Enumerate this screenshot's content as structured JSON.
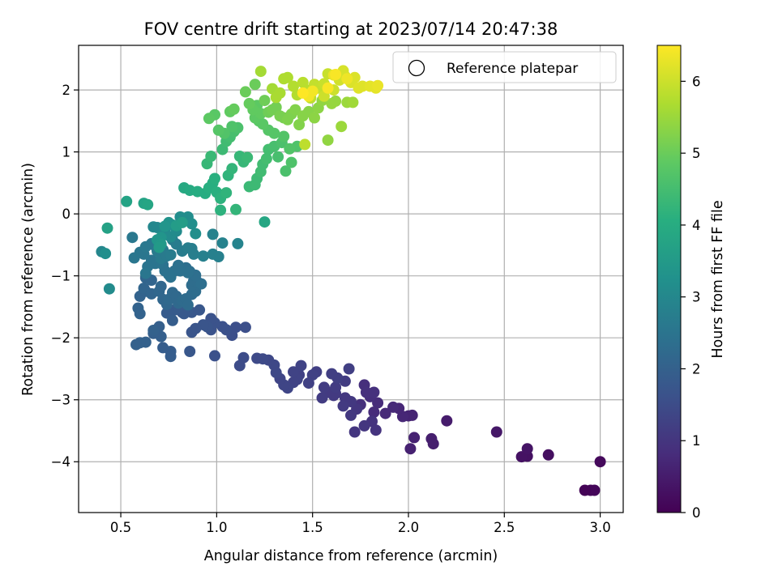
{
  "chart_data": {
    "type": "scatter",
    "title": "FOV centre drift starting at 2023/07/14 20:47:38",
    "xlabel": "Angular distance from reference (arcmin)",
    "ylabel": "Rotation from reference (arcmin)",
    "xlim": [
      0.28,
      3.12
    ],
    "ylim": [
      -4.82,
      2.72
    ],
    "xticks": [
      0.5,
      1.0,
      1.5,
      2.0,
      2.5,
      3.0
    ],
    "xtick_labels": [
      "0.5",
      "1.0",
      "1.5",
      "2.0",
      "2.5",
      "3.0"
    ],
    "yticks": [
      -4,
      -3,
      -2,
      -1,
      0,
      1,
      2
    ],
    "ytick_labels": [
      "−4",
      "−3",
      "−2",
      "−1",
      "0",
      "1",
      "2"
    ],
    "grid": true,
    "legend": {
      "position": "top-right",
      "entries": [
        "Reference platepar"
      ]
    },
    "colorbar": {
      "label": "Hours from first FF file",
      "colormap": "viridis",
      "range": [
        0,
        6.5
      ],
      "ticks": [
        0,
        1,
        2,
        3,
        4,
        5,
        6
      ],
      "tick_labels": [
        "0",
        "1",
        "2",
        "3",
        "4",
        "5",
        "6"
      ]
    },
    "points": [
      [
        2.95,
        -4.46,
        0.08
      ],
      [
        2.97,
        -4.46,
        0.1
      ],
      [
        2.92,
        -4.46,
        0.05
      ],
      [
        3.0,
        -4.0,
        0.15
      ],
      [
        2.73,
        -3.89,
        0.25
      ],
      [
        2.62,
        -3.91,
        0.3
      ],
      [
        2.59,
        -3.92,
        0.32
      ],
      [
        2.62,
        -3.79,
        0.35
      ],
      [
        2.46,
        -3.52,
        0.4
      ],
      [
        2.2,
        -3.34,
        0.5
      ],
      [
        2.12,
        -3.63,
        0.55
      ],
      [
        2.13,
        -3.71,
        0.55
      ],
      [
        2.03,
        -3.61,
        0.6
      ],
      [
        2.01,
        -3.79,
        0.6
      ],
      [
        2.02,
        -3.25,
        0.65
      ],
      [
        2.0,
        -3.26,
        0.65
      ],
      [
        1.97,
        -3.27,
        0.7
      ],
      [
        1.95,
        -3.14,
        0.7
      ],
      [
        1.92,
        -3.12,
        0.75
      ],
      [
        1.88,
        -3.22,
        0.75
      ],
      [
        1.84,
        -3.05,
        0.8
      ],
      [
        1.82,
        -3.2,
        0.8
      ],
      [
        1.8,
        -2.95,
        0.85
      ],
      [
        1.77,
        -2.76,
        0.85
      ],
      [
        1.75,
        -3.08,
        0.9
      ],
      [
        1.78,
        -2.88,
        0.9
      ],
      [
        1.82,
        -2.88,
        0.9
      ],
      [
        1.81,
        -3.35,
        0.95
      ],
      [
        1.83,
        -3.49,
        0.95
      ],
      [
        1.77,
        -3.42,
        1.0
      ],
      [
        1.72,
        -3.52,
        1.0
      ],
      [
        1.73,
        -3.15,
        1.0
      ],
      [
        1.7,
        -3.25,
        1.05
      ],
      [
        1.67,
        -2.97,
        1.05
      ],
      [
        1.7,
        -3.03,
        1.05
      ],
      [
        1.66,
        -3.1,
        1.1
      ],
      [
        1.62,
        -2.9,
        1.1
      ],
      [
        1.61,
        -2.93,
        1.1
      ],
      [
        1.58,
        -2.88,
        1.1
      ],
      [
        1.55,
        -2.97,
        1.15
      ],
      [
        1.56,
        -2.8,
        1.15
      ],
      [
        1.62,
        -2.8,
        1.15
      ],
      [
        1.67,
        -2.7,
        1.15
      ],
      [
        1.63,
        -2.65,
        1.2
      ],
      [
        1.69,
        -2.5,
        1.2
      ],
      [
        1.6,
        -2.58,
        1.2
      ],
      [
        1.52,
        -2.55,
        1.2
      ],
      [
        1.5,
        -2.6,
        1.25
      ],
      [
        1.48,
        -2.73,
        1.25
      ],
      [
        1.43,
        -2.6,
        1.25
      ],
      [
        1.44,
        -2.45,
        1.3
      ],
      [
        1.42,
        -2.67,
        1.3
      ],
      [
        1.4,
        -2.72,
        1.3
      ],
      [
        1.4,
        -2.55,
        1.3
      ],
      [
        1.37,
        -2.81,
        1.35
      ],
      [
        1.35,
        -2.76,
        1.35
      ],
      [
        1.33,
        -2.66,
        1.35
      ],
      [
        1.31,
        -2.56,
        1.4
      ],
      [
        1.3,
        -2.44,
        1.4
      ],
      [
        1.27,
        -2.36,
        1.4
      ],
      [
        1.24,
        -2.34,
        1.45
      ],
      [
        1.21,
        -2.33,
        1.45
      ],
      [
        1.14,
        -2.32,
        1.5
      ],
      [
        1.12,
        -2.45,
        1.5
      ],
      [
        1.15,
        -1.83,
        1.55
      ],
      [
        1.1,
        -1.83,
        1.55
      ],
      [
        1.08,
        -1.96,
        1.55
      ],
      [
        1.05,
        -1.87,
        1.6
      ],
      [
        1.03,
        -1.82,
        1.6
      ],
      [
        0.99,
        -2.29,
        1.6
      ],
      [
        0.97,
        -1.87,
        1.65
      ],
      [
        0.99,
        -1.76,
        1.65
      ],
      [
        0.97,
        -1.69,
        1.65
      ],
      [
        0.95,
        -1.82,
        1.7
      ],
      [
        0.93,
        -1.79,
        1.7
      ],
      [
        0.89,
        -1.85,
        1.7
      ],
      [
        0.87,
        -1.91,
        1.7
      ],
      [
        0.86,
        -2.22,
        1.75
      ],
      [
        0.87,
        -1.59,
        1.75
      ],
      [
        0.91,
        -1.55,
        1.75
      ],
      [
        0.85,
        -1.54,
        1.8
      ],
      [
        0.83,
        -1.61,
        1.8
      ],
      [
        0.82,
        -1.59,
        1.8
      ],
      [
        0.8,
        -1.49,
        1.85
      ],
      [
        0.78,
        -1.55,
        1.85
      ],
      [
        0.75,
        -1.59,
        1.85
      ],
      [
        0.74,
        -1.6,
        1.85
      ],
      [
        0.77,
        -1.72,
        1.9
      ],
      [
        0.76,
        -2.22,
        1.9
      ],
      [
        0.76,
        -2.3,
        1.9
      ],
      [
        0.72,
        -2.16,
        1.9
      ],
      [
        0.71,
        -1.98,
        1.95
      ],
      [
        0.7,
        -1.82,
        1.95
      ],
      [
        0.67,
        -1.93,
        1.95
      ],
      [
        0.67,
        -1.88,
        2.0
      ],
      [
        0.63,
        -2.07,
        2.0
      ],
      [
        0.6,
        -2.08,
        2.0
      ],
      [
        0.58,
        -2.11,
        2.0
      ],
      [
        0.59,
        -1.52,
        2.05
      ],
      [
        0.6,
        -1.61,
        2.05
      ],
      [
        0.6,
        -1.33,
        2.05
      ],
      [
        0.63,
        -1.25,
        2.05
      ],
      [
        0.62,
        -1.2,
        2.1
      ],
      [
        0.63,
        -1.03,
        2.1
      ],
      [
        0.66,
        -1.07,
        2.1
      ],
      [
        0.66,
        -1.29,
        2.1
      ],
      [
        0.7,
        -1.25,
        2.15
      ],
      [
        0.71,
        -1.17,
        2.15
      ],
      [
        0.72,
        -1.38,
        2.15
      ],
      [
        0.74,
        -1.46,
        2.15
      ],
      [
        0.75,
        -1.38,
        2.2
      ],
      [
        0.77,
        -1.27,
        2.2
      ],
      [
        0.79,
        -1.33,
        2.2
      ],
      [
        0.8,
        -1.44,
        2.2
      ],
      [
        0.82,
        -1.4,
        2.25
      ],
      [
        0.84,
        -1.37,
        2.25
      ],
      [
        0.85,
        -1.47,
        2.25
      ],
      [
        0.87,
        -1.3,
        2.25
      ],
      [
        0.89,
        -1.25,
        2.3
      ],
      [
        0.87,
        -1.15,
        2.3
      ],
      [
        0.88,
        -1.08,
        2.3
      ],
      [
        0.9,
        -1.1,
        2.3
      ],
      [
        0.92,
        -1.13,
        2.35
      ],
      [
        0.89,
        -0.99,
        2.35
      ],
      [
        0.86,
        -0.93,
        2.35
      ],
      [
        0.84,
        -0.87,
        2.35
      ],
      [
        0.85,
        -0.95,
        2.4
      ],
      [
        0.81,
        -0.92,
        2.4
      ],
      [
        0.8,
        -0.83,
        2.4
      ],
      [
        0.78,
        -0.92,
        2.4
      ],
      [
        0.76,
        -1.02,
        2.45
      ],
      [
        0.75,
        -0.98,
        2.45
      ],
      [
        0.73,
        -0.92,
        2.45
      ],
      [
        0.72,
        -0.82,
        2.45
      ],
      [
        0.7,
        -0.79,
        2.5
      ],
      [
        0.68,
        -0.8,
        2.5
      ],
      [
        0.66,
        -0.75,
        2.5
      ],
      [
        0.64,
        -0.85,
        2.5
      ],
      [
        0.63,
        -0.96,
        2.55
      ],
      [
        0.62,
        -0.65,
        2.55
      ],
      [
        0.6,
        -0.62,
        2.55
      ],
      [
        0.57,
        -0.71,
        2.55
      ],
      [
        0.56,
        -0.38,
        2.6
      ],
      [
        0.63,
        -0.53,
        2.6
      ],
      [
        0.66,
        -0.48,
        2.6
      ],
      [
        0.68,
        -0.52,
        2.6
      ],
      [
        0.69,
        -0.6,
        2.65
      ],
      [
        0.71,
        -0.72,
        2.65
      ],
      [
        0.72,
        -0.58,
        2.65
      ],
      [
        0.74,
        -0.68,
        2.65
      ],
      [
        0.76,
        -0.66,
        2.7
      ],
      [
        0.77,
        -0.42,
        2.7
      ],
      [
        0.79,
        -0.49,
        2.7
      ],
      [
        0.82,
        -0.6,
        2.7
      ],
      [
        0.85,
        -0.55,
        2.75
      ],
      [
        0.87,
        -0.56,
        2.75
      ],
      [
        0.88,
        -0.65,
        2.75
      ],
      [
        0.93,
        -0.68,
        2.8
      ],
      [
        0.98,
        -0.65,
        2.8
      ],
      [
        1.01,
        -0.69,
        2.8
      ],
      [
        1.03,
        -0.47,
        2.85
      ],
      [
        0.98,
        -0.33,
        2.85
      ],
      [
        1.11,
        -0.48,
        2.9
      ],
      [
        0.4,
        -0.61,
        2.95
      ],
      [
        0.67,
        -0.21,
        3.0
      ],
      [
        0.69,
        -0.22,
        3.0
      ],
      [
        0.72,
        -0.31,
        3.05
      ],
      [
        0.73,
        -0.27,
        3.05
      ],
      [
        0.76,
        -0.37,
        3.1
      ],
      [
        0.79,
        -0.28,
        3.1
      ],
      [
        0.81,
        -0.05,
        3.15
      ],
      [
        0.85,
        -0.05,
        3.15
      ],
      [
        0.87,
        -0.16,
        3.2
      ],
      [
        0.89,
        -0.32,
        3.2
      ],
      [
        0.77,
        -0.18,
        3.25
      ],
      [
        0.75,
        -0.14,
        3.3
      ],
      [
        0.73,
        -0.2,
        3.35
      ],
      [
        0.71,
        -0.38,
        3.35
      ],
      [
        0.69,
        -0.42,
        3.4
      ],
      [
        0.71,
        -0.49,
        3.45
      ],
      [
        0.7,
        -0.54,
        3.5
      ],
      [
        0.79,
        -0.19,
        3.55
      ],
      [
        0.82,
        -0.14,
        3.6
      ],
      [
        0.42,
        -0.64,
        3.2
      ],
      [
        0.44,
        -1.21,
        3.1
      ],
      [
        0.43,
        -0.23,
        3.7
      ],
      [
        0.62,
        0.17,
        3.75
      ],
      [
        0.64,
        0.15,
        3.8
      ],
      [
        0.53,
        0.2,
        3.75
      ],
      [
        1.25,
        -0.13,
        3.85
      ],
      [
        0.83,
        0.42,
        3.9
      ],
      [
        0.86,
        0.38,
        3.95
      ],
      [
        0.9,
        0.36,
        4.0
      ],
      [
        0.94,
        0.33,
        4.0
      ],
      [
        0.96,
        0.42,
        4.05
      ],
      [
        0.98,
        0.5,
        4.05
      ],
      [
        0.99,
        0.57,
        4.1
      ],
      [
        1.0,
        0.35,
        4.1
      ],
      [
        1.02,
        0.25,
        4.15
      ],
      [
        1.02,
        0.06,
        4.15
      ],
      [
        1.05,
        0.34,
        4.2
      ],
      [
        1.06,
        0.62,
        4.2
      ],
      [
        1.08,
        0.73,
        4.25
      ],
      [
        1.1,
        0.07,
        4.25
      ],
      [
        1.12,
        0.93,
        4.3
      ],
      [
        1.14,
        0.84,
        4.3
      ],
      [
        1.16,
        0.91,
        4.35
      ],
      [
        1.17,
        0.44,
        4.35
      ],
      [
        1.2,
        0.47,
        4.4
      ],
      [
        1.21,
        0.57,
        4.4
      ],
      [
        1.23,
        0.68,
        4.45
      ],
      [
        1.24,
        0.8,
        4.45
      ],
      [
        1.26,
        0.89,
        4.5
      ],
      [
        1.27,
        1.04,
        4.5
      ],
      [
        1.3,
        1.09,
        4.55
      ],
      [
        1.32,
        0.92,
        4.55
      ],
      [
        1.34,
        1.15,
        4.6
      ],
      [
        1.36,
        0.69,
        4.6
      ],
      [
        1.39,
        0.83,
        4.65
      ],
      [
        1.42,
        1.09,
        4.65
      ],
      [
        1.38,
        1.05,
        4.7
      ],
      [
        1.35,
        1.25,
        4.7
      ],
      [
        1.3,
        1.3,
        4.75
      ],
      [
        1.27,
        1.35,
        4.75
      ],
      [
        1.24,
        1.45,
        4.8
      ],
      [
        1.22,
        1.5,
        4.8
      ],
      [
        1.2,
        1.55,
        4.85
      ],
      [
        1.21,
        1.75,
        4.85
      ],
      [
        1.23,
        1.62,
        4.9
      ],
      [
        1.19,
        1.68,
        4.9
      ],
      [
        1.17,
        1.78,
        4.95
      ],
      [
        0.95,
        0.81,
        4.3
      ],
      [
        0.97,
        0.93,
        4.35
      ],
      [
        1.03,
        1.04,
        4.4
      ],
      [
        1.05,
        1.17,
        4.45
      ],
      [
        1.07,
        1.24,
        4.5
      ],
      [
        1.09,
        1.33,
        4.55
      ],
      [
        1.11,
        1.39,
        4.6
      ],
      [
        1.08,
        1.41,
        4.65
      ],
      [
        1.04,
        1.3,
        4.7
      ],
      [
        1.01,
        1.35,
        4.75
      ],
      [
        0.99,
        1.6,
        4.8
      ],
      [
        0.96,
        1.54,
        4.85
      ],
      [
        1.07,
        1.65,
        4.9
      ],
      [
        1.09,
        1.69,
        4.95
      ],
      [
        1.15,
        1.97,
        5.0
      ],
      [
        1.2,
        2.09,
        5.0
      ],
      [
        1.25,
        1.83,
        5.05
      ],
      [
        1.27,
        1.64,
        5.05
      ],
      [
        1.29,
        1.68,
        5.1
      ],
      [
        1.31,
        1.72,
        5.1
      ],
      [
        1.33,
        1.58,
        5.15
      ],
      [
        1.35,
        1.55,
        5.15
      ],
      [
        1.37,
        1.52,
        5.2
      ],
      [
        1.39,
        1.61,
        5.2
      ],
      [
        1.41,
        1.68,
        5.25
      ],
      [
        1.43,
        1.44,
        5.25
      ],
      [
        1.45,
        1.58,
        5.3
      ],
      [
        1.48,
        1.65,
        5.3
      ],
      [
        1.51,
        1.55,
        5.35
      ],
      [
        1.53,
        1.71,
        5.35
      ],
      [
        1.55,
        1.83,
        5.4
      ],
      [
        1.58,
        1.19,
        5.4
      ],
      [
        1.6,
        1.78,
        5.45
      ],
      [
        1.62,
        1.82,
        5.45
      ],
      [
        1.65,
        1.41,
        5.5
      ],
      [
        1.68,
        1.8,
        5.5
      ],
      [
        1.71,
        1.8,
        5.55
      ],
      [
        1.23,
        2.3,
        5.6
      ],
      [
        1.29,
        2.02,
        5.6
      ],
      [
        1.31,
        1.88,
        5.65
      ],
      [
        1.33,
        1.95,
        5.65
      ],
      [
        1.35,
        2.18,
        5.7
      ],
      [
        1.37,
        2.2,
        5.7
      ],
      [
        1.4,
        2.06,
        5.75
      ],
      [
        1.42,
        1.92,
        5.75
      ],
      [
        1.45,
        2.12,
        5.8
      ],
      [
        1.47,
        2.0,
        5.8
      ],
      [
        1.49,
        1.87,
        5.85
      ],
      [
        1.46,
        1.12,
        5.85
      ],
      [
        1.51,
        2.09,
        5.9
      ],
      [
        1.53,
        2.03,
        5.9
      ],
      [
        1.56,
        2.1,
        5.95
      ],
      [
        1.58,
        2.26,
        5.95
      ],
      [
        1.56,
        1.9,
        6.0
      ],
      [
        1.61,
        2.0,
        6.0
      ],
      [
        1.64,
        2.16,
        6.05
      ],
      [
        1.66,
        2.31,
        6.1
      ],
      [
        1.67,
        2.22,
        6.1
      ],
      [
        1.7,
        2.12,
        6.15
      ],
      [
        1.72,
        2.2,
        6.15
      ],
      [
        1.74,
        2.03,
        6.2
      ],
      [
        1.76,
        2.06,
        6.2
      ],
      [
        1.8,
        2.06,
        6.25
      ],
      [
        1.83,
        2.03,
        6.25
      ],
      [
        1.84,
        2.07,
        6.3
      ],
      [
        1.61,
        2.24,
        6.3
      ],
      [
        1.68,
        2.18,
        6.35
      ],
      [
        1.48,
        1.9,
        6.4
      ],
      [
        1.5,
        1.98,
        6.4
      ],
      [
        1.58,
        2.03,
        6.45
      ],
      [
        1.62,
        2.25,
        6.45
      ],
      [
        1.45,
        1.95,
        6.5
      ]
    ]
  }
}
